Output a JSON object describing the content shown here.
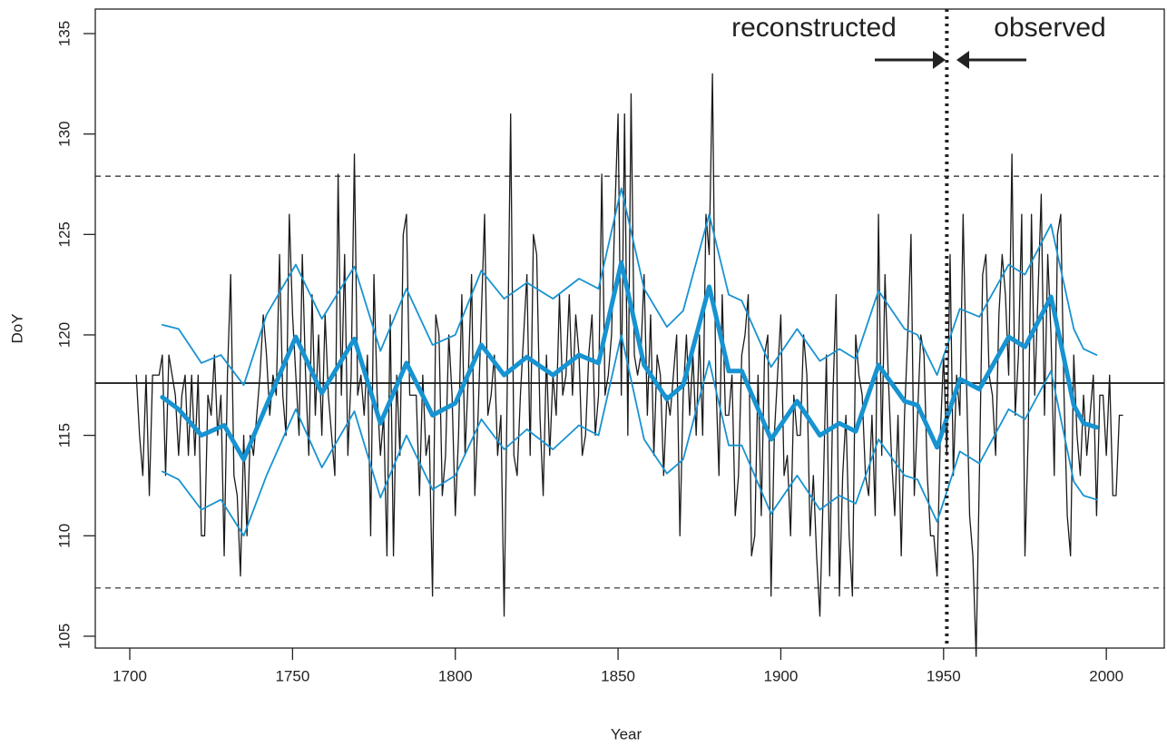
{
  "chart_data": {
    "type": "line",
    "x_label": "Year",
    "y_label": "DoY",
    "xlim": [
      1689.4,
      2017.8
    ],
    "ylim": [
      104.41,
      136.22
    ],
    "xticks": [
      1700,
      1750,
      1800,
      1850,
      1900,
      1950,
      2000
    ],
    "yticks": [
      105,
      110,
      115,
      120,
      125,
      130,
      135
    ],
    "annotations": [
      {
        "text": "reconstructed"
      },
      {
        "text": "observed"
      }
    ],
    "hlines": [
      {
        "value": 117.6,
        "style": "solid"
      },
      {
        "value": 127.9,
        "style": "dashed"
      },
      {
        "value": 107.4,
        "style": "dashed"
      }
    ],
    "vlines": [
      {
        "value": 1951,
        "style": "dotted"
      }
    ],
    "series": [
      {
        "color": "#1a1a1a",
        "width": 1.3,
        "x": [
          1702,
          1703,
          1704,
          1705,
          1706,
          1707,
          1708,
          1709,
          1710,
          1711,
          1712,
          1713,
          1714,
          1715,
          1716,
          1717,
          1718,
          1719,
          1720,
          1721,
          1722,
          1723,
          1724,
          1725,
          1726,
          1727,
          1728,
          1729,
          1730,
          1731,
          1732,
          1733,
          1734,
          1735,
          1736,
          1737,
          1738,
          1739,
          1740,
          1741,
          1742,
          1743,
          1744,
          1745,
          1746,
          1747,
          1748,
          1749,
          1750,
          1751,
          1752,
          1753,
          1754,
          1755,
          1756,
          1757,
          1758,
          1759,
          1760,
          1761,
          1762,
          1763,
          1764,
          1765,
          1766,
          1767,
          1768,
          1769,
          1770,
          1771,
          1772,
          1773,
          1774,
          1775,
          1776,
          1777,
          1778,
          1779,
          1780,
          1781,
          1782,
          1783,
          1784,
          1785,
          1786,
          1787,
          1788,
          1789,
          1790,
          1791,
          1792,
          1793,
          1794,
          1795,
          1796,
          1797,
          1798,
          1799,
          1800,
          1801,
          1802,
          1803,
          1804,
          1805,
          1806,
          1807,
          1808,
          1809,
          1810,
          1811,
          1812,
          1813,
          1814,
          1815,
          1816,
          1817,
          1818,
          1819,
          1820,
          1821,
          1822,
          1823,
          1824,
          1825,
          1826,
          1827,
          1828,
          1829,
          1830,
          1831,
          1832,
          1833,
          1834,
          1835,
          1836,
          1837,
          1838,
          1839,
          1840,
          1841,
          1842,
          1843,
          1844,
          1845,
          1846,
          1847,
          1848,
          1849,
          1850,
          1851,
          1852,
          1853,
          1854,
          1855,
          1856,
          1857,
          1858,
          1859,
          1860,
          1861,
          1862,
          1863,
          1864,
          1865,
          1866,
          1867,
          1868,
          1869,
          1870,
          1871,
          1872,
          1873,
          1874,
          1875,
          1876,
          1877,
          1878,
          1879,
          1880,
          1881,
          1882,
          1883,
          1884,
          1885,
          1886,
          1887,
          1888,
          1889,
          1890,
          1891,
          1892,
          1893,
          1894,
          1895,
          1896,
          1897,
          1898,
          1899,
          1900,
          1901,
          1902,
          1903,
          1904,
          1905,
          1906,
          1907,
          1908,
          1909,
          1910,
          1911,
          1912,
          1913,
          1914,
          1915,
          1916,
          1917,
          1918,
          1919,
          1920,
          1921,
          1922,
          1923,
          1924,
          1925,
          1926,
          1927,
          1928,
          1929,
          1930,
          1931,
          1932,
          1933,
          1934,
          1935,
          1936,
          1937,
          1938,
          1939,
          1940,
          1941,
          1942,
          1943,
          1944,
          1945,
          1946,
          1947,
          1948,
          1949,
          1950,
          1951,
          1952,
          1953,
          1954,
          1955,
          1956,
          1957,
          1958,
          1959,
          1960,
          1961,
          1962,
          1963,
          1964,
          1965,
          1966,
          1967,
          1968,
          1969,
          1970,
          1971,
          1972,
          1973,
          1974,
          1975,
          1976,
          1977,
          1978,
          1979,
          1980,
          1981,
          1982,
          1983,
          1984,
          1985,
          1986,
          1987,
          1988,
          1989,
          1990,
          1991,
          1992,
          1993,
          1994,
          1995,
          1996,
          1997,
          1998,
          1999,
          2000,
          2001,
          2002,
          2003,
          2004,
          2005
        ],
        "values": [
          118,
          115,
          113,
          118,
          112,
          118,
          118,
          118,
          119,
          113,
          119,
          118,
          117,
          114,
          117,
          118,
          114,
          118,
          114,
          118,
          110,
          110,
          117,
          116,
          119,
          115,
          117,
          109,
          118,
          123,
          113,
          112,
          108,
          115,
          110,
          115,
          114,
          116,
          118,
          121,
          119,
          116,
          118,
          117,
          124,
          117,
          115,
          126,
          121,
          118,
          115,
          124,
          118,
          114,
          122,
          116,
          120,
          115,
          121,
          117,
          115,
          113,
          128,
          117,
          124,
          114,
          118,
          129,
          117,
          118,
          116,
          119,
          110,
          123,
          117,
          114,
          116,
          109,
          121,
          109,
          118,
          114,
          125,
          126,
          117,
          117,
          117,
          112,
          118,
          114,
          115,
          107,
          121,
          120,
          112,
          114,
          120,
          117,
          111,
          115,
          122,
          114,
          118,
          123,
          112,
          116,
          121,
          126,
          116,
          117,
          119,
          114,
          116,
          106,
          118,
          131,
          114,
          113,
          117,
          120,
          123,
          114,
          125,
          124,
          116,
          112,
          119,
          114,
          118,
          116,
          122,
          117,
          118,
          122,
          117,
          121,
          119,
          114,
          115,
          119,
          121,
          115,
          117,
          128,
          117,
          118,
          120,
          126,
          131,
          117,
          131,
          115,
          132,
          119,
          118,
          119,
          123,
          116,
          121,
          114,
          119,
          118,
          113,
          117,
          116,
          118,
          120,
          110,
          117,
          120,
          116,
          119,
          115,
          120,
          115,
          126,
          124,
          133,
          118,
          113,
          122,
          116,
          116,
          118,
          111,
          113,
          119,
          120,
          122,
          109,
          110,
          118,
          111,
          119,
          120,
          107,
          115,
          118,
          121,
          113,
          114,
          110,
          117,
          115,
          115,
          120,
          118,
          110,
          113,
          109,
          106,
          112,
          119,
          108,
          117,
          122,
          107,
          113,
          116,
          110,
          107,
          120,
          118,
          117,
          113,
          112,
          116,
          111,
          126,
          114,
          123,
          118,
          114,
          111,
          116,
          109,
          116,
          120,
          125,
          112,
          116,
          120,
          119,
          113,
          110,
          110,
          108,
          115,
          119,
          114,
          124,
          113,
          118,
          116,
          126,
          118,
          111,
          109,
          104,
          113,
          123,
          124,
          118,
          117,
          114,
          121,
          124,
          122,
          118,
          129,
          116,
          119,
          126,
          109,
          115,
          126,
          117,
          122,
          127,
          116,
          124,
          120,
          113,
          125,
          126,
          117,
          111,
          109,
          119,
          115,
          113,
          117,
          114,
          116,
          118,
          111,
          117,
          117,
          114,
          118,
          112,
          112,
          116,
          116
        ]
      },
      {
        "color": "#1793d1",
        "width": 1.8,
        "x": [
          1710,
          1715,
          1722,
          1728,
          1735,
          1742,
          1751,
          1759,
          1769,
          1777,
          1785,
          1793,
          1800,
          1808,
          1815,
          1822,
          1830,
          1838,
          1844,
          1851,
          1858,
          1865,
          1870,
          1878,
          1884,
          1888,
          1897,
          1905,
          1912,
          1918,
          1923,
          1930,
          1938,
          1942,
          1948,
          1955,
          1961,
          1970,
          1975,
          1983,
          1990,
          1993,
          1997
        ],
        "values": [
          120.5,
          120.3,
          118.6,
          119,
          117.5,
          121,
          123.5,
          120.8,
          123.4,
          119.2,
          122.3,
          119.5,
          120,
          123.2,
          121.8,
          122.6,
          121.8,
          122.8,
          122.3,
          127.3,
          122.3,
          120.4,
          121.2,
          126,
          122,
          121.7,
          118.4,
          120.3,
          118.7,
          119.3,
          118.8,
          122.2,
          120.3,
          120,
          118,
          121.3,
          120.9,
          123.5,
          123,
          125.5,
          120.3,
          119.3,
          119
        ]
      },
      {
        "color": "#1793d1",
        "width": 1.8,
        "x": [
          1710,
          1715,
          1722,
          1728,
          1735,
          1742,
          1751,
          1759,
          1769,
          1777,
          1785,
          1793,
          1800,
          1808,
          1815,
          1822,
          1830,
          1838,
          1844,
          1851,
          1858,
          1865,
          1870,
          1878,
          1884,
          1888,
          1897,
          1905,
          1912,
          1918,
          1923,
          1930,
          1938,
          1942,
          1948,
          1955,
          1961,
          1970,
          1975,
          1983,
          1990,
          1993,
          1997
        ],
        "values": [
          113.2,
          112.8,
          111.3,
          111.8,
          110,
          113,
          116.3,
          113.4,
          116.2,
          111.9,
          115,
          112.3,
          113,
          115.8,
          114.3,
          115.3,
          114.3,
          115.5,
          115,
          120,
          114.8,
          113.1,
          113.8,
          118.7,
          114.5,
          114.5,
          111.1,
          113,
          111.3,
          112,
          111.6,
          114.8,
          113,
          112.8,
          110.7,
          114.2,
          113.6,
          116.3,
          115.8,
          118.2,
          112.7,
          112,
          111.8
        ]
      },
      {
        "color": "#1793d1",
        "width": 5,
        "x": [
          1710,
          1715,
          1722,
          1729,
          1735,
          1742,
          1751,
          1759,
          1769,
          1777,
          1785,
          1793,
          1800,
          1808,
          1815,
          1822,
          1830,
          1838,
          1844,
          1851,
          1858,
          1865,
          1870,
          1878,
          1884,
          1888,
          1897,
          1905,
          1912,
          1918,
          1923,
          1930,
          1938,
          1942,
          1948,
          1955,
          1961,
          1970,
          1975,
          1983,
          1990,
          1993,
          1997
        ],
        "values": [
          116.9,
          116.3,
          115,
          115.5,
          113.8,
          116.5,
          119.9,
          117.1,
          119.8,
          115.6,
          118.6,
          116,
          116.6,
          119.5,
          118,
          118.9,
          118,
          119,
          118.6,
          123.6,
          118.5,
          116.8,
          117.5,
          122.4,
          118.2,
          118.2,
          114.8,
          116.7,
          115,
          115.6,
          115.2,
          118.5,
          116.7,
          116.5,
          114.4,
          117.8,
          117.3,
          119.9,
          119.4,
          121.9,
          116.5,
          115.6,
          115.4
        ]
      }
    ]
  }
}
